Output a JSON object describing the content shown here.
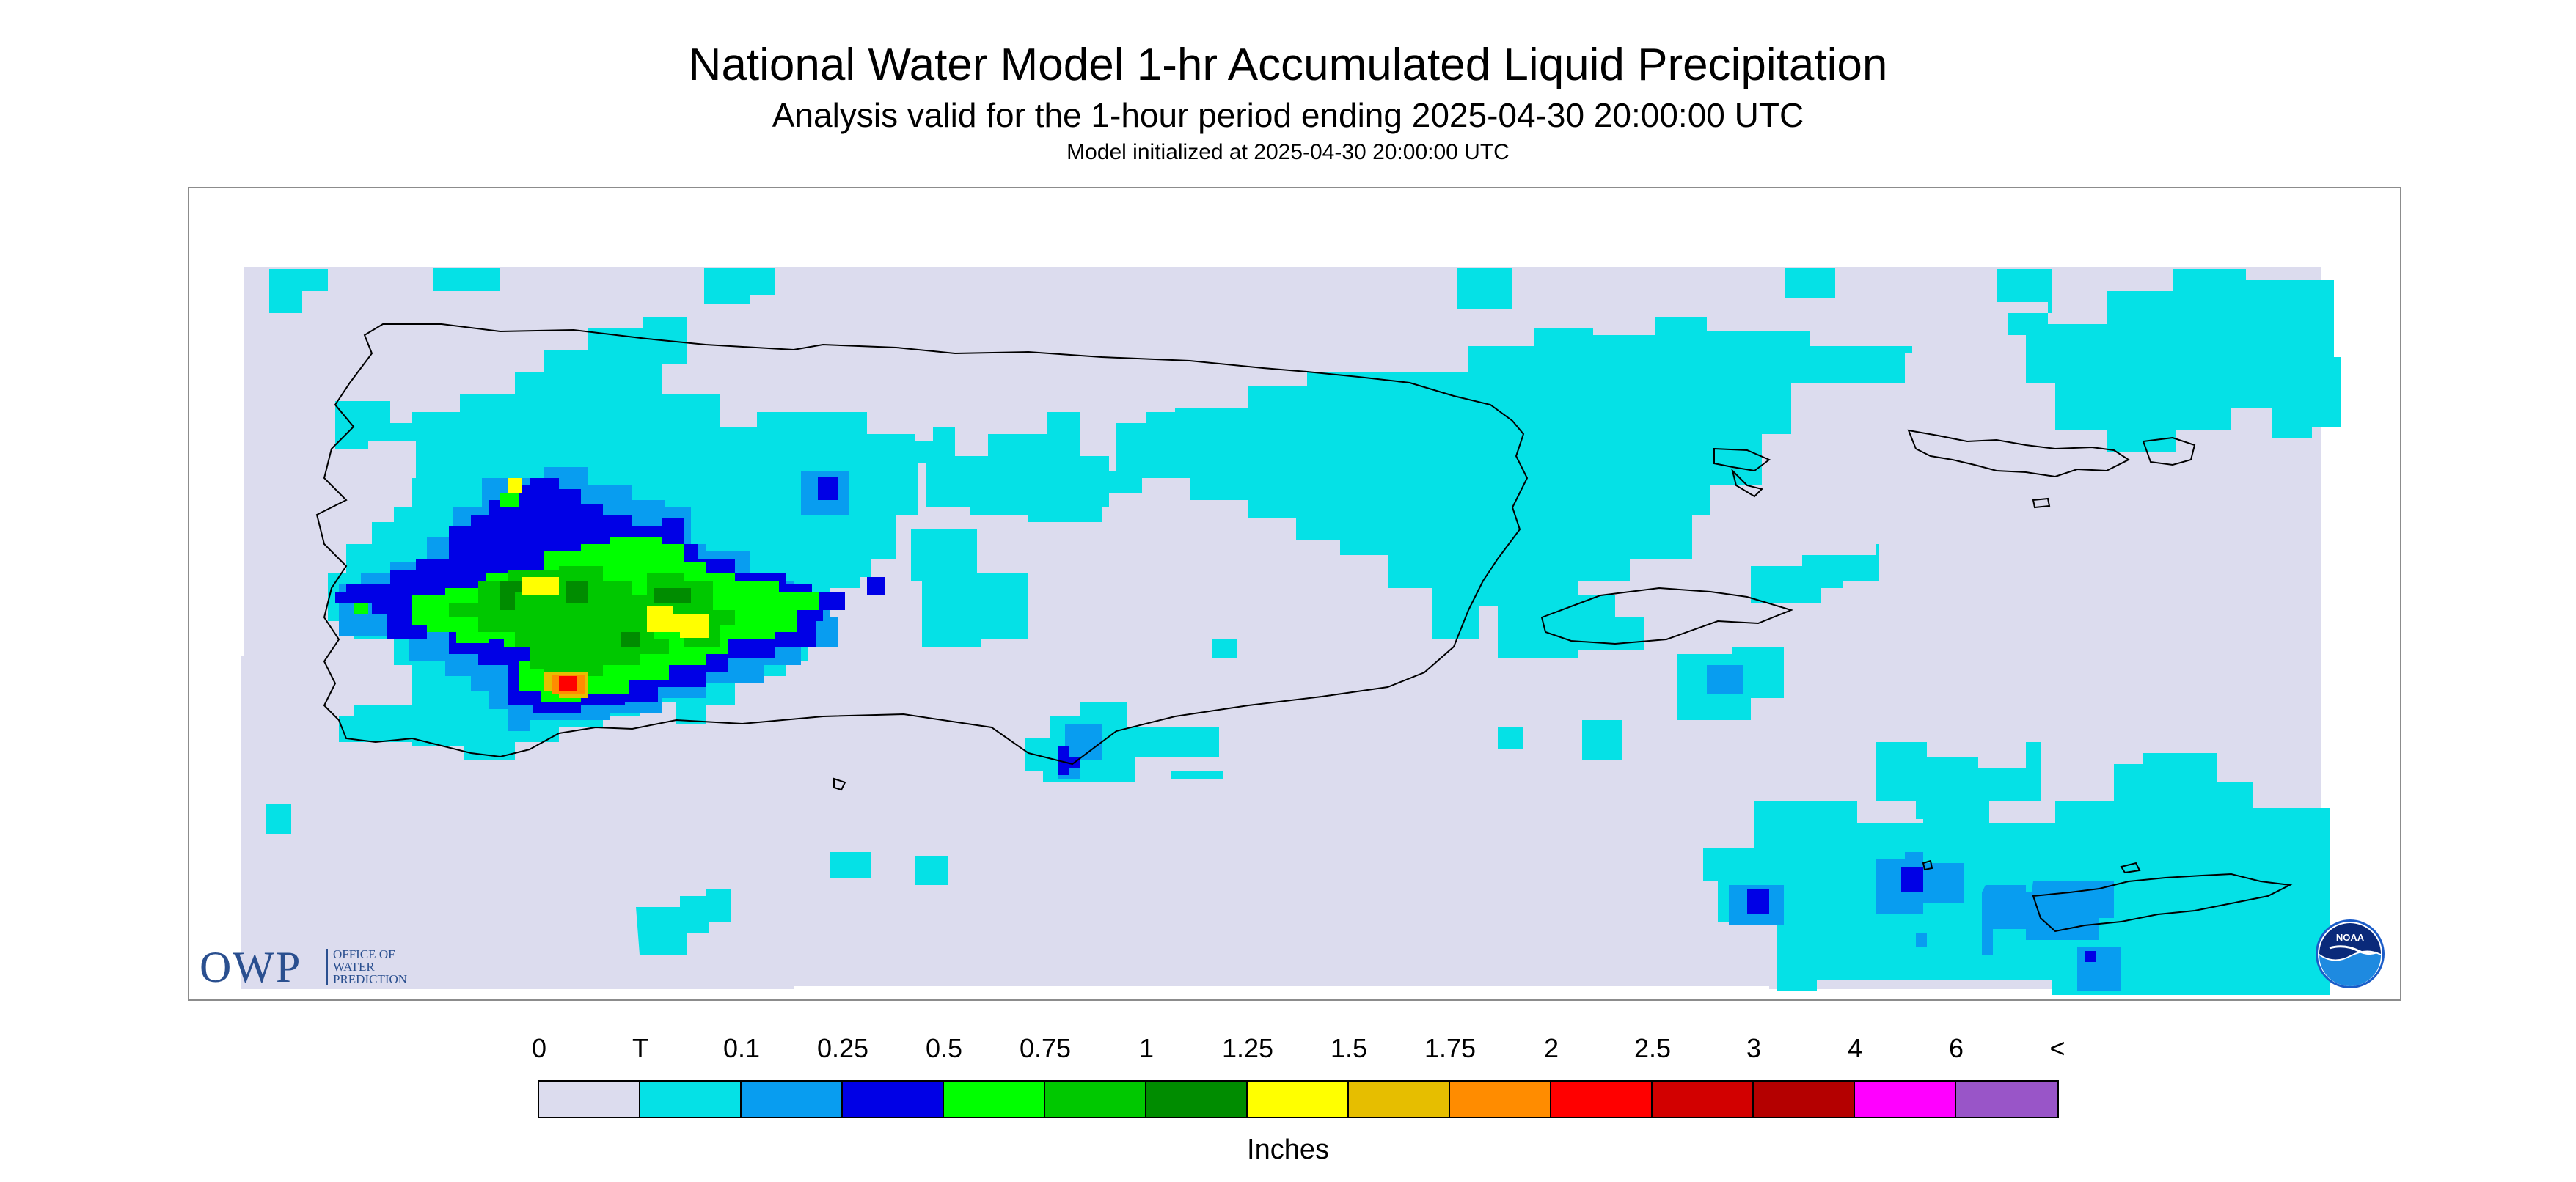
{
  "header": {
    "title": "National Water Model 1-hr Accumulated Liquid Precipitation",
    "subtitle": "Analysis valid for the 1-hour period ending 2025-04-30 20:00:00 UTC",
    "init": "Model initialized at 2025-04-30 20:00:00 UTC"
  },
  "logos": {
    "owp_letters": "OWP",
    "owp_text": [
      "OFFICE OF",
      "WATER",
      "PREDICTION"
    ],
    "noaa_text": "NOAA"
  },
  "legend": {
    "tick_labels": [
      "0",
      "T",
      "0.1",
      "0.25",
      "0.5",
      "0.75",
      "1",
      "1.25",
      "1.5",
      "1.75",
      "2",
      "2.5",
      "3",
      "4",
      "6",
      "<"
    ],
    "colors": [
      "#dcdcee",
      "#05e1e6",
      "#089df0",
      "#0000e6",
      "#00ff00",
      "#00c800",
      "#008c00",
      "#ffff00",
      "#e6be00",
      "#ff8c00",
      "#ff0000",
      "#d20000",
      "#b40000",
      "#ff00ff",
      "#9955c8"
    ],
    "unit": "Inches"
  },
  "colors": {
    "no_data_bg": "#ffffff",
    "zero_field": "#dcdcee",
    "coastline": "#000000"
  }
}
